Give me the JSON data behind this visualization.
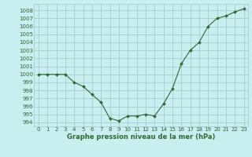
{
  "x": [
    0,
    1,
    2,
    3,
    4,
    5,
    6,
    7,
    8,
    9,
    10,
    11,
    12,
    13,
    14,
    15,
    16,
    17,
    18,
    19,
    20,
    21,
    22,
    23
  ],
  "y": [
    1000,
    1000,
    1000,
    1000,
    999,
    998.5,
    997.5,
    996.5,
    994.5,
    994.2,
    994.8,
    994.8,
    995,
    994.8,
    996.3,
    998.2,
    1001.3,
    1003,
    1004,
    1006,
    1007,
    1007.3,
    1007.8,
    1008.2
  ],
  "line_color": "#2d6a2d",
  "marker_color": "#2d6a2d",
  "bg_color": "#c8eef0",
  "grid_color": "#a0c8c8",
  "xlabel": "Graphe pression niveau de la mer (hPa)",
  "ylim": [
    993.5,
    1008.8
  ],
  "xlim": [
    -0.5,
    23.5
  ],
  "yticks": [
    994,
    995,
    996,
    997,
    998,
    999,
    1000,
    1001,
    1002,
    1003,
    1004,
    1005,
    1006,
    1007,
    1008
  ],
  "xticks": [
    0,
    1,
    2,
    3,
    4,
    5,
    6,
    7,
    8,
    9,
    10,
    11,
    12,
    13,
    14,
    15,
    16,
    17,
    18,
    19,
    20,
    21,
    22,
    23
  ],
  "tick_fontsize": 5.0,
  "xlabel_fontsize": 6.0,
  "linewidth": 0.8,
  "markersize": 2.0
}
